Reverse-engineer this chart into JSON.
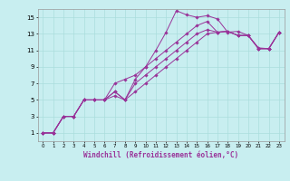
{
  "xlabel": "Windchill (Refroidissement éolien,°C)",
  "ylabel": "",
  "bg_color": "#c8eef0",
  "line_color": "#993399",
  "grid_color": "#aadddd",
  "xlim": [
    -0.5,
    23.5
  ],
  "ylim": [
    0,
    16
  ],
  "xticks": [
    0,
    1,
    2,
    3,
    4,
    5,
    6,
    7,
    8,
    9,
    10,
    11,
    12,
    13,
    14,
    15,
    16,
    17,
    18,
    19,
    20,
    21,
    22,
    23
  ],
  "yticks": [
    1,
    3,
    5,
    7,
    9,
    11,
    13,
    15
  ],
  "series": [
    {
      "x": [
        0,
        1,
        2,
        3,
        4,
        5,
        6,
        7,
        8,
        9,
        10,
        11,
        12,
        13,
        14,
        15,
        16,
        17,
        18,
        19,
        20,
        21,
        22,
        23
      ],
      "y": [
        1,
        1,
        3,
        3,
        5,
        5,
        5,
        6,
        5,
        7.5,
        9,
        11,
        13.2,
        15.8,
        15.3,
        15,
        15.2,
        14.8,
        13.2,
        13.3,
        12.8,
        11.3,
        11.2,
        13.2
      ]
    },
    {
      "x": [
        0,
        1,
        2,
        3,
        4,
        5,
        6,
        7,
        8,
        9,
        10,
        11,
        12,
        13,
        14,
        15,
        16,
        17,
        18,
        19,
        20,
        21,
        22,
        23
      ],
      "y": [
        1,
        1,
        3,
        3,
        5,
        5,
        5,
        7,
        7.5,
        8,
        9,
        10,
        11,
        12,
        13,
        14,
        14.5,
        13.2,
        13.3,
        12.8,
        12.8,
        11.2,
        11.2,
        13.2
      ]
    },
    {
      "x": [
        0,
        1,
        2,
        3,
        4,
        5,
        6,
        7,
        8,
        9,
        10,
        11,
        12,
        13,
        14,
        15,
        16,
        17,
        18,
        19,
        20,
        21,
        22,
        23
      ],
      "y": [
        1,
        1,
        3,
        3,
        5,
        5,
        5,
        6,
        5,
        7,
        8,
        9,
        10,
        11,
        12,
        13,
        13.5,
        13.2,
        13.3,
        12.8,
        12.8,
        11.2,
        11.2,
        13.2
      ]
    },
    {
      "x": [
        0,
        1,
        2,
        3,
        4,
        5,
        6,
        7,
        8,
        9,
        10,
        11,
        12,
        13,
        14,
        15,
        16,
        17,
        18,
        19,
        20,
        21,
        22,
        23
      ],
      "y": [
        1,
        1,
        3,
        3,
        5,
        5,
        5,
        5.5,
        5,
        6,
        7,
        8,
        9,
        10,
        11,
        12,
        13,
        13.2,
        13.3,
        12.8,
        12.8,
        11.2,
        11.2,
        13.2
      ]
    }
  ],
  "marker": "D",
  "marker_size": 1.8,
  "line_width": 0.7,
  "axis_fontsize": 5.5,
  "tick_fontsize_x": 4.0,
  "tick_fontsize_y": 5.0
}
